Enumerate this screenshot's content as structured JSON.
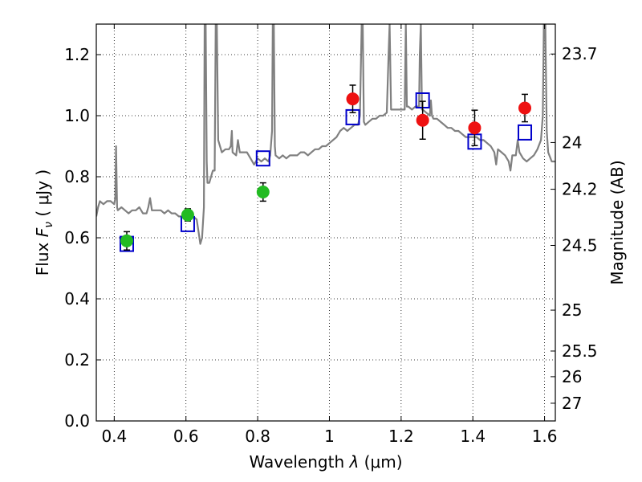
{
  "chart_data": {
    "type": "scatter",
    "xlabel": "Wavelength  λ (μm)",
    "xlabel_main": "Wavelength  ",
    "xlabel_lambda": "λ",
    "xlabel_unit": " (μm)",
    "ylabel": "Flux  Fν  ( μJy )",
    "ylabel_main": "Flux  ",
    "ylabel_F": "F",
    "ylabel_sub": "ν",
    "ylabel_unit": "  ( μJy )",
    "y2label": "Magnitude (AB)",
    "xlim": [
      0.35,
      1.63
    ],
    "ylim": [
      0.0,
      1.3
    ],
    "grid": true,
    "x_ticks": [
      0.4,
      0.6,
      0.8,
      1.0,
      1.2,
      1.4,
      1.6
    ],
    "x_tick_labels": [
      "0.4",
      "0.6",
      "0.8",
      "1",
      "1.2",
      "1.4",
      "1.6"
    ],
    "y_ticks": [
      0.0,
      0.2,
      0.4,
      0.6,
      0.8,
      1.0,
      1.2
    ],
    "y_tick_labels": [
      "0.0",
      "0.2",
      "0.4",
      "0.6",
      "0.8",
      "1.0",
      "1.2"
    ],
    "magnitude_ticks": [
      {
        "label": "23.7",
        "flux": 1.202
      },
      {
        "label": "24",
        "flux": 0.912
      },
      {
        "label": "24.2",
        "flux": 0.759
      },
      {
        "label": "24.5",
        "flux": 0.575
      },
      {
        "label": "25",
        "flux": 0.363
      },
      {
        "label": "25.5",
        "flux": 0.229
      },
      {
        "label": "26",
        "flux": 0.145
      },
      {
        "label": "27",
        "flux": 0.058
      }
    ],
    "series": [
      {
        "kind": "line",
        "color": "#808080",
        "points": [
          [
            0.35,
            0.67
          ],
          [
            0.355,
            0.7
          ],
          [
            0.36,
            0.72
          ],
          [
            0.37,
            0.71
          ],
          [
            0.38,
            0.72
          ],
          [
            0.39,
            0.72
          ],
          [
            0.4,
            0.71
          ],
          [
            0.403,
            0.73
          ],
          [
            0.405,
            0.9
          ],
          [
            0.408,
            0.7
          ],
          [
            0.41,
            0.69
          ],
          [
            0.42,
            0.7
          ],
          [
            0.43,
            0.69
          ],
          [
            0.44,
            0.68
          ],
          [
            0.45,
            0.69
          ],
          [
            0.46,
            0.69
          ],
          [
            0.47,
            0.7
          ],
          [
            0.48,
            0.68
          ],
          [
            0.49,
            0.68
          ],
          [
            0.495,
            0.7
          ],
          [
            0.5,
            0.73
          ],
          [
            0.505,
            0.69
          ],
          [
            0.51,
            0.69
          ],
          [
            0.52,
            0.69
          ],
          [
            0.53,
            0.69
          ],
          [
            0.54,
            0.68
          ],
          [
            0.55,
            0.69
          ],
          [
            0.56,
            0.68
          ],
          [
            0.57,
            0.68
          ],
          [
            0.58,
            0.67
          ],
          [
            0.59,
            0.67
          ],
          [
            0.6,
            0.67
          ],
          [
            0.61,
            0.67
          ],
          [
            0.62,
            0.67
          ],
          [
            0.63,
            0.66
          ],
          [
            0.635,
            0.62
          ],
          [
            0.64,
            0.58
          ],
          [
            0.645,
            0.6
          ],
          [
            0.65,
            0.7
          ],
          [
            0.652,
            1.3
          ],
          [
            0.655,
            1.3
          ],
          [
            0.658,
            0.85
          ],
          [
            0.66,
            0.78
          ],
          [
            0.665,
            0.78
          ],
          [
            0.67,
            0.8
          ],
          [
            0.675,
            0.82
          ],
          [
            0.68,
            0.82
          ],
          [
            0.683,
            1.3
          ],
          [
            0.686,
            1.3
          ],
          [
            0.69,
            0.92
          ],
          [
            0.7,
            0.88
          ],
          [
            0.71,
            0.89
          ],
          [
            0.72,
            0.89
          ],
          [
            0.725,
            0.9
          ],
          [
            0.728,
            0.95
          ],
          [
            0.73,
            0.88
          ],
          [
            0.74,
            0.87
          ],
          [
            0.745,
            0.92
          ],
          [
            0.75,
            0.88
          ],
          [
            0.76,
            0.88
          ],
          [
            0.77,
            0.88
          ],
          [
            0.78,
            0.86
          ],
          [
            0.79,
            0.84
          ],
          [
            0.8,
            0.86
          ],
          [
            0.81,
            0.85
          ],
          [
            0.82,
            0.86
          ],
          [
            0.83,
            0.85
          ],
          [
            0.835,
            0.87
          ],
          [
            0.84,
            0.95
          ],
          [
            0.842,
            1.3
          ],
          [
            0.845,
            1.3
          ],
          [
            0.848,
            0.9
          ],
          [
            0.85,
            0.87
          ],
          [
            0.86,
            0.86
          ],
          [
            0.87,
            0.87
          ],
          [
            0.88,
            0.86
          ],
          [
            0.89,
            0.87
          ],
          [
            0.9,
            0.87
          ],
          [
            0.91,
            0.87
          ],
          [
            0.92,
            0.88
          ],
          [
            0.93,
            0.88
          ],
          [
            0.94,
            0.87
          ],
          [
            0.95,
            0.88
          ],
          [
            0.96,
            0.89
          ],
          [
            0.97,
            0.89
          ],
          [
            0.98,
            0.9
          ],
          [
            0.99,
            0.9
          ],
          [
            1.0,
            0.91
          ],
          [
            1.01,
            0.92
          ],
          [
            1.02,
            0.93
          ],
          [
            1.03,
            0.95
          ],
          [
            1.04,
            0.96
          ],
          [
            1.05,
            0.95
          ],
          [
            1.06,
            0.96
          ],
          [
            1.07,
            0.97
          ],
          [
            1.08,
            0.97
          ],
          [
            1.085,
            1.0
          ],
          [
            1.09,
            1.3
          ],
          [
            1.093,
            1.3
          ],
          [
            1.096,
            0.98
          ],
          [
            1.1,
            0.97
          ],
          [
            1.11,
            0.98
          ],
          [
            1.12,
            0.99
          ],
          [
            1.13,
            0.99
          ],
          [
            1.14,
            1.0
          ],
          [
            1.15,
            1.0
          ],
          [
            1.16,
            1.01
          ],
          [
            1.165,
            1.2
          ],
          [
            1.168,
            1.3
          ],
          [
            1.172,
            1.02
          ],
          [
            1.18,
            1.02
          ],
          [
            1.19,
            1.02
          ],
          [
            1.2,
            1.02
          ],
          [
            1.21,
            1.02
          ],
          [
            1.213,
            1.3
          ],
          [
            1.216,
            1.03
          ],
          [
            1.22,
            1.03
          ],
          [
            1.23,
            1.02
          ],
          [
            1.24,
            1.03
          ],
          [
            1.25,
            1.03
          ],
          [
            1.252,
            1.2
          ],
          [
            1.255,
            1.3
          ],
          [
            1.258,
            1.02
          ],
          [
            1.26,
            1.02
          ],
          [
            1.27,
            1.01
          ],
          [
            1.28,
            1.0
          ],
          [
            1.283,
            1.05
          ],
          [
            1.286,
            1.0
          ],
          [
            1.29,
            0.99
          ],
          [
            1.3,
            0.99
          ],
          [
            1.31,
            0.98
          ],
          [
            1.32,
            0.97
          ],
          [
            1.33,
            0.96
          ],
          [
            1.34,
            0.96
          ],
          [
            1.35,
            0.95
          ],
          [
            1.36,
            0.95
          ],
          [
            1.37,
            0.94
          ],
          [
            1.38,
            0.93
          ],
          [
            1.39,
            0.93
          ],
          [
            1.4,
            0.93
          ],
          [
            1.41,
            0.93
          ],
          [
            1.42,
            0.92
          ],
          [
            1.43,
            0.92
          ],
          [
            1.44,
            0.91
          ],
          [
            1.45,
            0.9
          ],
          [
            1.46,
            0.88
          ],
          [
            1.465,
            0.84
          ],
          [
            1.47,
            0.89
          ],
          [
            1.48,
            0.88
          ],
          [
            1.49,
            0.87
          ],
          [
            1.5,
            0.85
          ],
          [
            1.505,
            0.82
          ],
          [
            1.51,
            0.87
          ],
          [
            1.52,
            0.87
          ],
          [
            1.525,
            0.92
          ],
          [
            1.53,
            0.88
          ],
          [
            1.54,
            0.86
          ],
          [
            1.55,
            0.85
          ],
          [
            1.56,
            0.86
          ],
          [
            1.57,
            0.87
          ],
          [
            1.58,
            0.89
          ],
          [
            1.59,
            0.92
          ],
          [
            1.595,
            1.0
          ],
          [
            1.598,
            1.3
          ],
          [
            1.602,
            1.3
          ],
          [
            1.606,
            0.95
          ],
          [
            1.61,
            0.88
          ],
          [
            1.62,
            0.85
          ],
          [
            1.63,
            0.85
          ]
        ]
      },
      {
        "kind": "open-square",
        "color": "#0000cc",
        "points": [
          [
            0.435,
            0.58
          ],
          [
            0.605,
            0.645
          ],
          [
            0.815,
            0.86
          ],
          [
            1.065,
            0.995
          ],
          [
            1.26,
            1.05
          ],
          [
            1.405,
            0.915
          ],
          [
            1.545,
            0.945
          ]
        ]
      },
      {
        "kind": "filled-circle",
        "color": "#22bb22",
        "points": [
          {
            "x": 0.435,
            "y": 0.59,
            "err": 0.03
          },
          {
            "x": 0.605,
            "y": 0.675,
            "err": 0.02
          },
          {
            "x": 0.815,
            "y": 0.75,
            "err": 0.03
          }
        ]
      },
      {
        "kind": "filled-circle",
        "color": "#ee1111",
        "points": [
          {
            "x": 1.065,
            "y": 1.055,
            "err": 0.045
          },
          {
            "x": 1.26,
            "y": 0.985,
            "err": 0.062
          },
          {
            "x": 1.405,
            "y": 0.96,
            "err": 0.058
          },
          {
            "x": 1.545,
            "y": 1.025,
            "err": 0.045
          }
        ]
      }
    ]
  }
}
